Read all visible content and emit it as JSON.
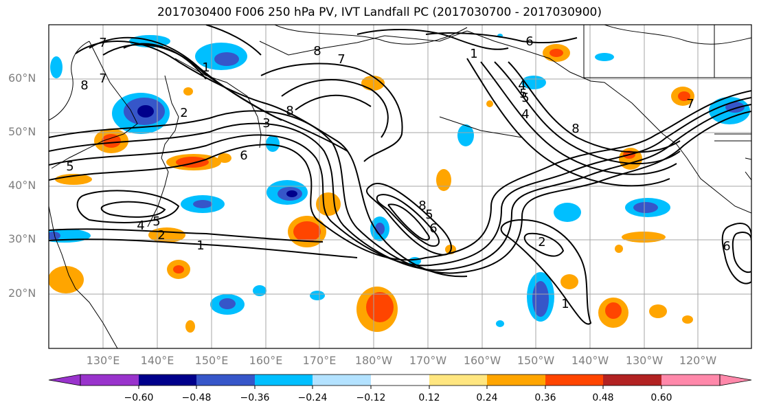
{
  "title": "2017030400 F006 250 hPa PV, IVT Landfall PC (2017030700 - 2017030900)",
  "lat_labels": [
    "60°N",
    "50°N",
    "40°N",
    "30°N",
    "20°N"
  ],
  "lon_labels": [
    "130°E",
    "140°E",
    "150°E",
    "160°E",
    "170°E",
    "180°W",
    "170°W",
    "160°W",
    "150°W",
    "140°W",
    "130°W",
    "120°W"
  ],
  "colorbar": {
    "ticks": [
      "−0.60",
      "−0.48",
      "−0.36",
      "−0.24",
      "−0.12",
      "0.12",
      "0.24",
      "0.36",
      "0.48",
      "0.60"
    ],
    "colors": [
      "#9933cc",
      "#00008b",
      "#3656c9",
      "#00bfff",
      "#b3e2ff",
      "#ffffff",
      "#ffe680",
      "#ffa500",
      "#ff4500",
      "#b22222",
      "#ff88aa"
    ]
  },
  "contour_labels": [
    "7",
    "8",
    "1",
    "8",
    "6",
    "2",
    "8",
    "7",
    "6",
    "5",
    "8",
    "7",
    "5",
    "4",
    "1",
    "6",
    "5",
    "8",
    "4",
    "3",
    "4",
    "5",
    "2",
    "1",
    "7",
    "6",
    "2",
    "1",
    "5"
  ],
  "colors": {
    "frame": "#000000",
    "grid": "#a6a6a6",
    "label_gray": "#7f7f7f"
  }
}
